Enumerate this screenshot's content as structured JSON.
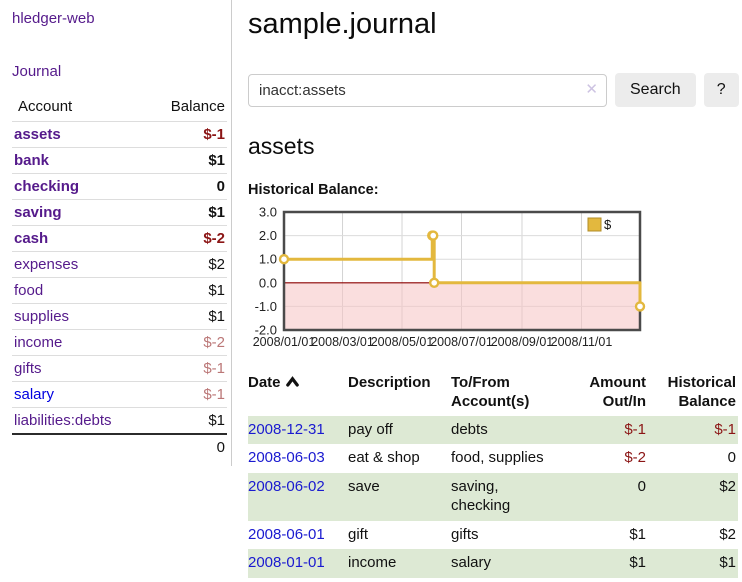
{
  "app": {
    "brand": "hledger-web",
    "nav_journal": "Journal"
  },
  "colors": {
    "link_purple": "#551a8b",
    "link_blue": "#0000e0",
    "negative_strong": "#8b1515",
    "negative_soft": "#bb7777",
    "row_shade_green": "#dde9d4",
    "chart_line_gold": "#e3b83e",
    "chart_negative_region_pink": "#f6c3c3",
    "chart_zero_line_red": "#8b0000"
  },
  "sidebar": {
    "accounts_header": {
      "account": "Account",
      "balance": "Balance"
    },
    "accounts": [
      {
        "name": "assets",
        "balance": "$-1",
        "depth": 1,
        "bold": true,
        "name_color": "purple",
        "balance_tone": "neg-strong"
      },
      {
        "name": "bank",
        "balance": "$1",
        "depth": 2,
        "bold": true,
        "name_color": "purple",
        "balance_tone": "pos"
      },
      {
        "name": "checking",
        "balance": "0",
        "depth": 3,
        "bold": true,
        "name_color": "purple",
        "balance_tone": "pos"
      },
      {
        "name": "saving",
        "balance": "$1",
        "depth": 3,
        "bold": true,
        "name_color": "purple",
        "balance_tone": "pos"
      },
      {
        "name": "cash",
        "balance": "$-2",
        "depth": 2,
        "bold": true,
        "name_color": "purple",
        "balance_tone": "neg-strong"
      },
      {
        "name": "expenses",
        "balance": "$2",
        "depth": 1,
        "bold": false,
        "name_color": "purple",
        "balance_tone": "pos"
      },
      {
        "name": "food",
        "balance": "$1",
        "depth": 2,
        "bold": false,
        "name_color": "purple",
        "balance_tone": "pos"
      },
      {
        "name": "supplies",
        "balance": "$1",
        "depth": 2,
        "bold": false,
        "name_color": "purple",
        "balance_tone": "pos"
      },
      {
        "name": "income",
        "balance": "$-2",
        "depth": 1,
        "bold": false,
        "name_color": "purple",
        "balance_tone": "neg-soft"
      },
      {
        "name": "gifts",
        "balance": "$-1",
        "depth": 2,
        "bold": false,
        "name_color": "purple",
        "balance_tone": "neg-soft"
      },
      {
        "name": "salary",
        "balance": "$-1",
        "depth": 2,
        "bold": false,
        "name_color": "blue",
        "balance_tone": "neg-soft"
      },
      {
        "name": "liabilities:debts",
        "balance": "$1",
        "depth": 1,
        "bold": false,
        "name_color": "purple",
        "balance_tone": "pos"
      }
    ],
    "total": "0"
  },
  "header": {
    "title": "sample.journal"
  },
  "search": {
    "value": "inacct:assets",
    "clear_icon": "✕",
    "button": "Search",
    "help_button": "?"
  },
  "main": {
    "account_title": "assets",
    "chart_label": "Historical Balance:"
  },
  "chart_data": {
    "type": "line",
    "title": "Historical Balance",
    "step": true,
    "xrange": [
      "2008-01-01",
      "2008-12-31"
    ],
    "ylim": [
      -2.0,
      3.0
    ],
    "yticks": [
      3.0,
      2.0,
      1.0,
      0.0,
      -1.0,
      -2.0
    ],
    "xticks": [
      "2008/01/01",
      "2008/03/01",
      "2008/05/01",
      "2008/07/01",
      "2008/09/01",
      "2008/11/01"
    ],
    "grid": true,
    "legend": {
      "label": "$",
      "position": "top-right"
    },
    "series": [
      {
        "name": "$",
        "points": [
          [
            "2008-01-01",
            1
          ],
          [
            "2008-06-01",
            2
          ],
          [
            "2008-06-02",
            2
          ],
          [
            "2008-06-03",
            0
          ],
          [
            "2008-12-31",
            -1
          ]
        ]
      }
    ]
  },
  "register": {
    "columns": [
      {
        "label": "Date",
        "align": "left",
        "sorted": "asc"
      },
      {
        "label": "Description",
        "align": "left"
      },
      {
        "label": "To/From Account(s)",
        "align": "left"
      },
      {
        "label": "Amount Out/In",
        "align": "right"
      },
      {
        "label": "Historical Balance",
        "align": "right"
      }
    ],
    "rows": [
      {
        "date": "2008-12-31",
        "description": "pay off",
        "accounts": "debts",
        "amount": "$-1",
        "amount_negative": true,
        "balance": "$-1",
        "balance_negative": true,
        "shaded": true
      },
      {
        "date": "2008-06-03",
        "description": "eat & shop",
        "accounts": "food, supplies",
        "amount": "$-2",
        "amount_negative": true,
        "balance": "0",
        "balance_negative": false,
        "shaded": false
      },
      {
        "date": "2008-06-02",
        "description": "save",
        "accounts": "saving, checking",
        "amount": "0",
        "amount_negative": false,
        "balance": "$2",
        "balance_negative": false,
        "shaded": true
      },
      {
        "date": "2008-06-01",
        "description": "gift",
        "accounts": "gifts",
        "amount": "$1",
        "amount_negative": false,
        "balance": "$2",
        "balance_negative": false,
        "shaded": false
      },
      {
        "date": "2008-01-01",
        "description": "income",
        "accounts": "salary",
        "amount": "$1",
        "amount_negative": false,
        "balance": "$1",
        "balance_negative": false,
        "shaded": true
      }
    ]
  }
}
